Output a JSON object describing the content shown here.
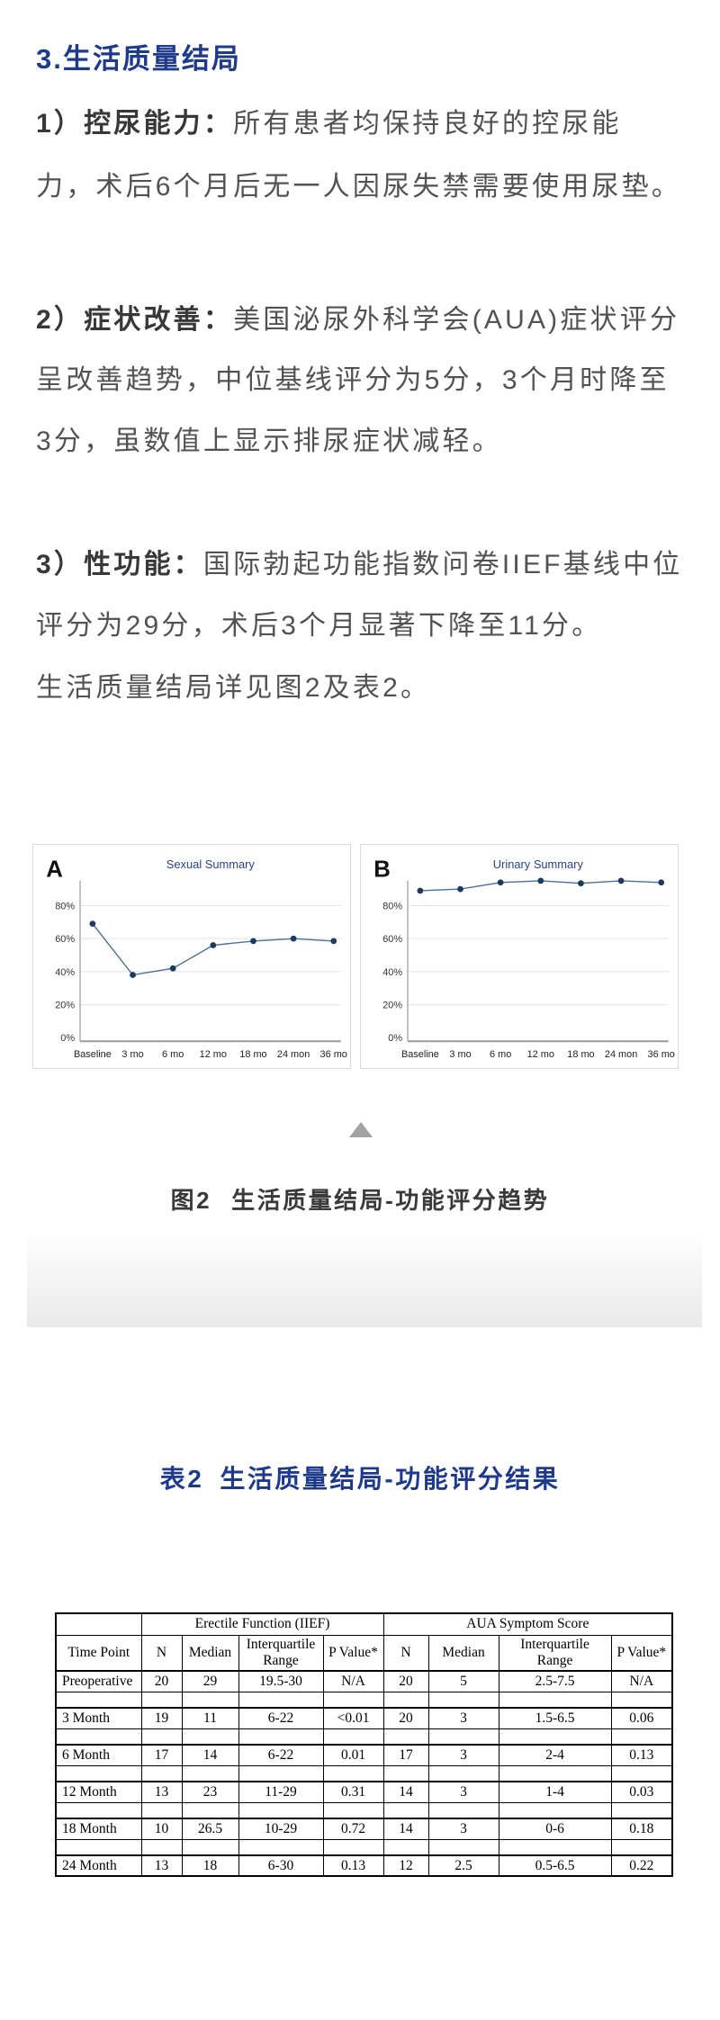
{
  "heading": "3.生活质量结局",
  "body": {
    "p1_line1_lead": "1）控尿能力：",
    "p1_line1_rest": "所有患者均保持良好的控尿能",
    "p1_line2": "力，术后6个月后无一人因尿失禁需要使用尿垫。",
    "p2_line1_lead": "2）症状改善：",
    "p2_line1_rest": "美国泌尿外科学会(AUA)症状评分",
    "p2_line2": "呈改善趋势，中位基线评分为5分，3个月时降至",
    "p2_line3": "3分，虽数值上显示排尿症状减轻。",
    "p3_line1_lead": "3）性功能：",
    "p3_line1_rest": "国际勃起功能指数问卷IIEF基线中位",
    "p3_line2": "评分为29分，术后3个月显著下降至11分。",
    "p4": "生活质量结局详见图2及表2。"
  },
  "figure": {
    "caption_prefix": "图2",
    "caption_text": "生活质量结局-功能评分趋势",
    "marker_icon": "triangle-up-icon"
  },
  "chart_data": [
    {
      "type": "line",
      "panel_label": "A",
      "title": "Sexual Summary",
      "categories": [
        "Baseline",
        "3 mo",
        "6 mo",
        "12 mo",
        "18 mo",
        "24 mon",
        "36 mo"
      ],
      "values": [
        69,
        38,
        42,
        56,
        58.5,
        60,
        58.5
      ],
      "yticks": [
        0,
        20,
        40,
        60,
        80
      ],
      "ytick_suffix": "%",
      "ylim": [
        0,
        95
      ],
      "grid": true,
      "legend": "none",
      "line_color": "#4a7094",
      "marker_color": "#1a3a5f",
      "title_color": "#2c3f8f"
    },
    {
      "type": "line",
      "panel_label": "B",
      "title": "Urinary Summary",
      "categories": [
        "Baseline",
        "3 mo",
        "6 mo",
        "12 mo",
        "18 mo",
        "24 mon",
        "36 mo"
      ],
      "values": [
        89,
        90,
        94,
        95,
        93.5,
        95,
        94
      ],
      "yticks": [
        0,
        20,
        40,
        60,
        80
      ],
      "ytick_suffix": "%",
      "ylim": [
        0,
        95
      ],
      "grid": true,
      "legend": "none",
      "line_color": "#4a7094",
      "marker_color": "#1a3a5f",
      "title_color": "#2c3f8f"
    }
  ],
  "table_section": {
    "title_prefix": "表2",
    "title_text": "生活质量结局-功能评分结果",
    "table": {
      "group_header_left": "Erectile Function (IIEF)",
      "group_header_right": "AUA Symptom Score",
      "columns": [
        "Time Point",
        "N",
        "Median",
        "Interquartile Range",
        "P Value*",
        "N",
        "Median",
        "Interquartile Range",
        "P Value*"
      ],
      "rows": [
        [
          "Preoperative",
          "20",
          "29",
          "19.5-30",
          "N/A",
          "20",
          "5",
          "2.5-7.5",
          "N/A"
        ],
        [
          "3 Month",
          "19",
          "11",
          "6-22",
          "<0.01",
          "20",
          "3",
          "1.5-6.5",
          "0.06"
        ],
        [
          "6 Month",
          "17",
          "14",
          "6-22",
          "0.01",
          "17",
          "3",
          "2-4",
          "0.13"
        ],
        [
          "12 Month",
          "13",
          "23",
          "11-29",
          "0.31",
          "14",
          "3",
          "1-4",
          "0.03"
        ],
        [
          "18 Month",
          "10",
          "26.5",
          "10-29",
          "0.72",
          "14",
          "3",
          "0-6",
          "0.18"
        ],
        [
          "24 Month",
          "13",
          "18",
          "6-30",
          "0.13",
          "12",
          "2.5",
          "0.5-6.5",
          "0.22"
        ]
      ]
    }
  },
  "colors": {
    "accent_blue": "#1e3a8c",
    "body_text": "#525252",
    "caption_text": "#3a3a3a",
    "chart_line": "#4a7094",
    "chart_marker": "#1a3a5f",
    "table_border": "#000000"
  }
}
